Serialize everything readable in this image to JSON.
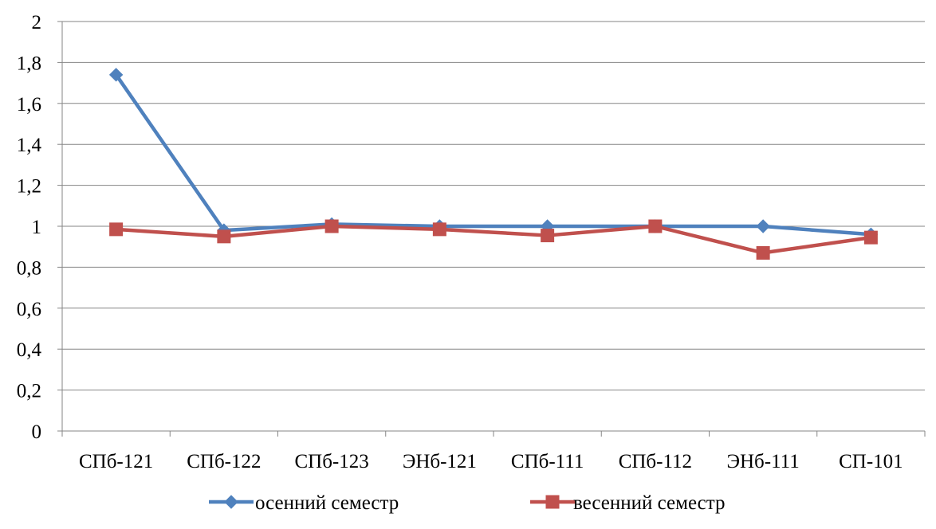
{
  "chart_data": {
    "type": "line",
    "categories": [
      "СПб-121",
      "СПб-122",
      "СПб-123",
      "ЭНб-121",
      "СПб-111",
      "СПб-112",
      "ЭНб-111",
      "СП-101"
    ],
    "ylim": [
      0,
      2
    ],
    "yticks": [
      0,
      0.2,
      0.4,
      0.6,
      0.8,
      1,
      1.2,
      1.4,
      1.6,
      1.8,
      2
    ],
    "ytick_labels": [
      "0",
      "0,2",
      "0,4",
      "0,6",
      "0,8",
      "1",
      "1,2",
      "1,4",
      "1,6",
      "1,8",
      "2"
    ],
    "grid": true,
    "legend_position": "bottom",
    "series": [
      {
        "name": "осенний семестр",
        "marker": "diamond",
        "color": "#4F81BD",
        "values": [
          1.74,
          0.98,
          1.01,
          1.0,
          1.0,
          1.0,
          1.0,
          0.96
        ]
      },
      {
        "name": "весенний семестр",
        "marker": "square",
        "color": "#C0504D",
        "values": [
          0.985,
          0.95,
          1.0,
          0.985,
          0.955,
          1.0,
          0.87,
          0.945
        ]
      }
    ]
  }
}
